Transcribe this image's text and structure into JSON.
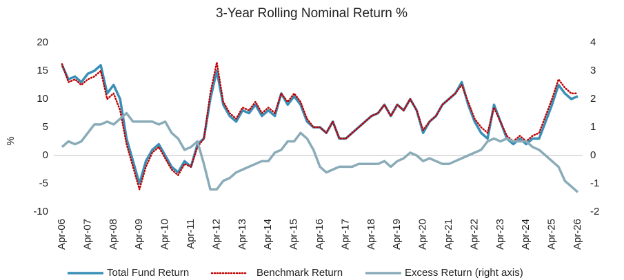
{
  "chart_data": {
    "type": "line",
    "title": "3-Year Rolling Nominal Return %",
    "ylabel": "%",
    "x": [
      "Apr-06",
      null,
      null,
      null,
      "Apr-07",
      null,
      null,
      null,
      "Apr-08",
      null,
      null,
      null,
      "Apr-09",
      null,
      null,
      null,
      "Apr-10",
      null,
      null,
      null,
      "Apr-11",
      null,
      null,
      null,
      "Apr-12",
      null,
      null,
      null,
      "Apr-13",
      null,
      null,
      null,
      "Apr-14",
      null,
      null,
      null,
      "Apr-15",
      null,
      null,
      null,
      "Apr-16",
      null,
      null,
      null,
      "Apr-17",
      null,
      null,
      null,
      "Apr-18",
      null,
      null,
      null,
      "Apr-19",
      null,
      null,
      null,
      "Apr-20",
      null,
      null,
      null,
      "Apr-21",
      null,
      null,
      null,
      "Apr-22",
      null,
      null,
      null,
      "Apr-23",
      null,
      null,
      null,
      "Apr-24",
      null,
      null,
      null,
      "Apr-25",
      null,
      null,
      null,
      "Apr-26"
    ],
    "series": [
      {
        "name": "Total Fund Return",
        "color": "#3a8fb7",
        "style": "solid",
        "values": [
          16,
          13.5,
          14,
          13,
          14.5,
          15,
          16,
          11,
          12.5,
          10,
          3,
          -1,
          -5,
          -1,
          1,
          2,
          0,
          -2,
          -3,
          -1,
          -2,
          2,
          3,
          10,
          15,
          9,
          7,
          6,
          8,
          7.5,
          9,
          7,
          8,
          7,
          11,
          9,
          10.5,
          9,
          6,
          5,
          5,
          4,
          6,
          3,
          3,
          4,
          5,
          6,
          7,
          7.5,
          9,
          7,
          9,
          8,
          10,
          8,
          4,
          6,
          7,
          9,
          10,
          11,
          13,
          9,
          6,
          4,
          3,
          9,
          6,
          3,
          2,
          3,
          2,
          3,
          3,
          6,
          9,
          12.5,
          11,
          10,
          10.5
        ]
      },
      {
        "name": "Benchmark Return",
        "color": "#c00000",
        "style": "dotted",
        "values": [
          16.2,
          13,
          13.5,
          12.5,
          13.5,
          14,
          15,
          10,
          11,
          8,
          2,
          -2,
          -6,
          -2,
          0.5,
          1.5,
          -0.5,
          -2.5,
          -3.5,
          -1.5,
          -2,
          1.5,
          3,
          11,
          16.5,
          9.5,
          7.5,
          6.5,
          8.5,
          8,
          9.5,
          7.5,
          8.5,
          7.5,
          11,
          9.5,
          11,
          9.5,
          6.5,
          5,
          5,
          4,
          6,
          3,
          3,
          4,
          5,
          6,
          7,
          7.5,
          9,
          7,
          9,
          8,
          10,
          8,
          4.5,
          6,
          7,
          9,
          10,
          11,
          12.5,
          9.5,
          6.5,
          5,
          4,
          8.5,
          6,
          3.5,
          2.5,
          3.5,
          2.5,
          3.5,
          4,
          7,
          10,
          13.5,
          12,
          11,
          11
        ]
      },
      {
        "name": "Excess Return (right axis)",
        "color": "#8aabb8",
        "style": "solid",
        "axis": "y2",
        "values": [
          0.3,
          0.5,
          0.4,
          0.5,
          0.8,
          1.1,
          1.1,
          1.2,
          1.1,
          1.3,
          1.5,
          1.2,
          1.2,
          1.2,
          1.2,
          1.1,
          1.2,
          0.8,
          0.6,
          0.2,
          0.3,
          0.5,
          -0.3,
          -1.2,
          -1.2,
          -0.9,
          -0.8,
          -0.6,
          -0.5,
          -0.4,
          -0.3,
          -0.2,
          -0.2,
          0.1,
          0.2,
          0.5,
          0.5,
          0.8,
          0.6,
          0.2,
          -0.4,
          -0.6,
          -0.5,
          -0.4,
          -0.4,
          -0.4,
          -0.3,
          -0.3,
          -0.3,
          -0.3,
          -0.2,
          -0.4,
          -0.2,
          -0.1,
          0.1,
          0.0,
          -0.2,
          -0.1,
          -0.2,
          -0.3,
          -0.3,
          -0.2,
          -0.1,
          0.0,
          0.1,
          0.2,
          0.5,
          0.6,
          0.5,
          0.6,
          0.5,
          0.5,
          0.5,
          0.3,
          0.2,
          0.0,
          -0.2,
          -0.4,
          -0.9,
          -1.1,
          -1.3
        ]
      }
    ],
    "ylim": [
      -10,
      20
    ],
    "yticks": [
      -10,
      -5,
      0,
      5,
      10,
      15,
      20
    ],
    "y2lim": [
      -2,
      4
    ],
    "y2ticks": [
      -2,
      -1,
      0,
      1,
      2,
      3,
      4
    ],
    "legend": "bottom",
    "grid": false
  }
}
